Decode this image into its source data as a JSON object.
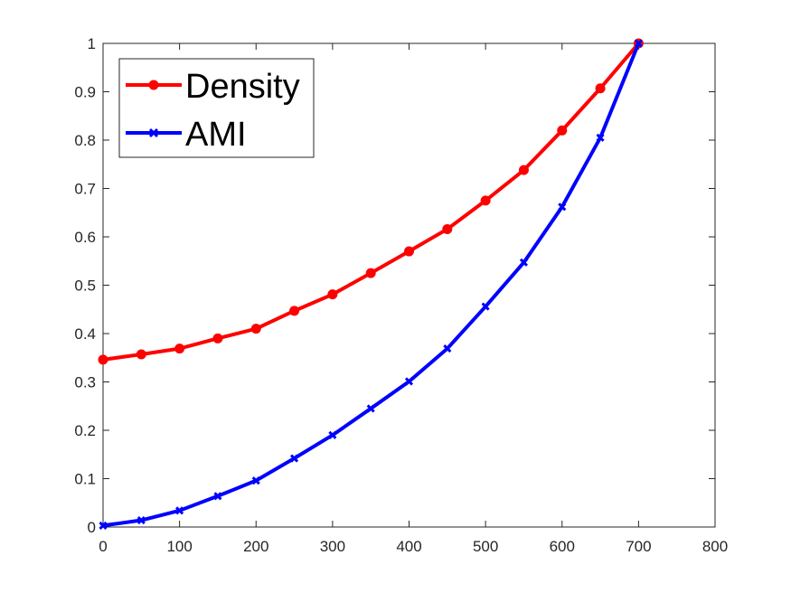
{
  "chart_data": {
    "type": "line",
    "title": "",
    "xlabel": "",
    "ylabel": "",
    "xlim": [
      0,
      800
    ],
    "ylim": [
      0,
      1
    ],
    "x_ticks": [
      0,
      100,
      200,
      300,
      400,
      500,
      600,
      700,
      800
    ],
    "y_ticks": [
      0,
      0.1,
      0.2,
      0.3,
      0.4,
      0.5,
      0.6,
      0.7,
      0.8,
      0.9,
      1
    ],
    "x_tick_labels": [
      "0",
      "100",
      "200",
      "300",
      "400",
      "500",
      "600",
      "700",
      "800"
    ],
    "y_tick_labels": [
      "0",
      "0.1",
      "0.2",
      "0.3",
      "0.4",
      "0.5",
      "0.6",
      "0.7",
      "0.8",
      "0.9",
      "1"
    ],
    "grid": false,
    "legend_position": "top-left",
    "x": [
      0,
      50,
      100,
      150,
      200,
      250,
      300,
      350,
      400,
      450,
      500,
      550,
      600,
      650,
      700
    ],
    "series": [
      {
        "name": "Density",
        "color": "#ff0000",
        "marker": "circle",
        "values": [
          0.346,
          0.357,
          0.369,
          0.39,
          0.41,
          0.447,
          0.481,
          0.525,
          0.57,
          0.616,
          0.675,
          0.738,
          0.82,
          0.907,
          1.0
        ]
      },
      {
        "name": "AMI",
        "color": "#0000ff",
        "marker": "x",
        "values": [
          0.003,
          0.014,
          0.034,
          0.064,
          0.096,
          0.142,
          0.19,
          0.245,
          0.301,
          0.369,
          0.456,
          0.547,
          0.662,
          0.805,
          1.0
        ]
      }
    ]
  }
}
